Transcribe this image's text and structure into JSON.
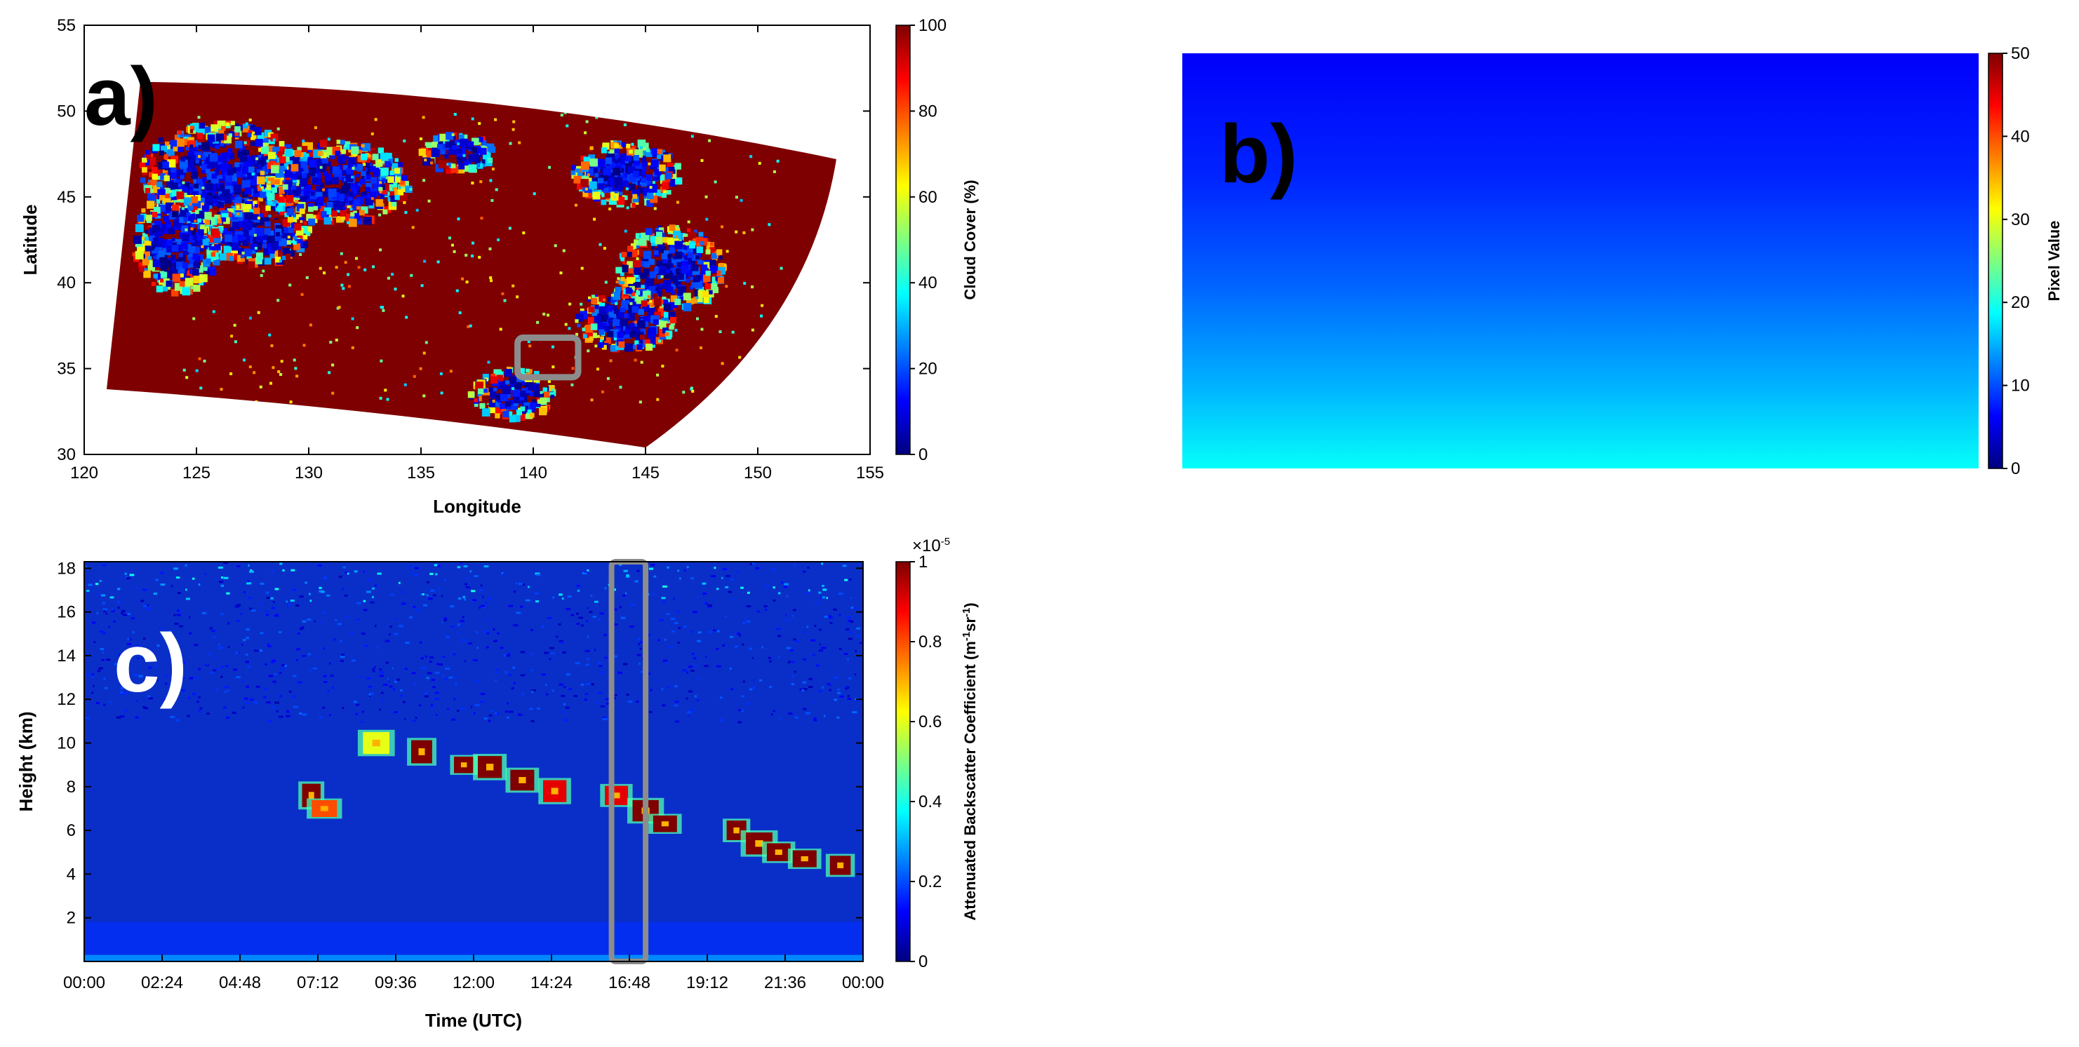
{
  "colors": {
    "jet": [
      "#00007f",
      "#0000ff",
      "#007fff",
      "#00ffff",
      "#7fff7f",
      "#ffff00",
      "#ff7f00",
      "#ff0000",
      "#7f0000"
    ],
    "highlight_box": "#8c8c8c",
    "map_background": "#7f0000",
    "panel_label_light": "#ffffff",
    "panel_label_dark": "#000000"
  },
  "chart_data": [
    {
      "panel": "a)",
      "type": "heatmap",
      "description_kind": "satellite cloud cover map",
      "xlabel": "Longitude",
      "ylabel": "Latitude",
      "xlim": [
        120,
        155
      ],
      "ylim": [
        30,
        55
      ],
      "xticks": [
        "120",
        "125",
        "130",
        "135",
        "140",
        "145",
        "150",
        "155"
      ],
      "yticks": [
        "30",
        "35",
        "40",
        "45",
        "50",
        "55"
      ],
      "colorbar": {
        "label": "Cloud Cover (%)",
        "range": [
          0,
          100
        ],
        "ticks": [
          "0",
          "20",
          "40",
          "60",
          "80",
          "100"
        ]
      },
      "swath_corners_lonlat": [
        [
          122.5,
          51.7
        ],
        [
          153.5,
          47.2
        ],
        [
          145.0,
          30.4
        ],
        [
          121.0,
          33.8
        ]
      ],
      "clear_regions_lonlat": [
        {
          "lon": 126.0,
          "lat": 46.5,
          "rx": 3.0,
          "ry": 2.5
        },
        {
          "lon": 131.0,
          "lat": 46.0,
          "rx": 2.8,
          "ry": 2.0
        },
        {
          "lon": 127.5,
          "lat": 43.0,
          "rx": 2.0,
          "ry": 1.5
        },
        {
          "lon": 124.0,
          "lat": 42.5,
          "rx": 1.6,
          "ry": 2.5
        },
        {
          "lon": 136.5,
          "lat": 47.8,
          "rx": 1.4,
          "ry": 0.9
        },
        {
          "lon": 144.0,
          "lat": 46.5,
          "rx": 2.0,
          "ry": 1.6
        },
        {
          "lon": 146.0,
          "lat": 41.0,
          "rx": 2.0,
          "ry": 2.0
        },
        {
          "lon": 144.0,
          "lat": 38.0,
          "rx": 1.8,
          "ry": 1.5
        },
        {
          "lon": 139.0,
          "lat": 33.7,
          "rx": 1.6,
          "ry": 1.2
        }
      ],
      "highlight_box_lonlat": {
        "lon_min": 139.3,
        "lon_max": 142.0,
        "lat_min": 34.5,
        "lat_max": 36.8
      }
    },
    {
      "panel": "b)",
      "type": "heatmap",
      "description_kind": "sky camera image",
      "colorbar": {
        "label": "Pixel Value",
        "range": [
          0,
          50
        ],
        "ticks": [
          "0",
          "10",
          "20",
          "30",
          "40",
          "50"
        ]
      },
      "vertical_gradient_values": [
        {
          "row": 0.0,
          "value": 6
        },
        {
          "row": 0.3,
          "value": 8
        },
        {
          "row": 0.55,
          "value": 11
        },
        {
          "row": 0.8,
          "value": 15
        },
        {
          "row": 1.0,
          "value": 19
        }
      ]
    },
    {
      "panel": "c)",
      "type": "heatmap",
      "description_kind": "lidar attenuated backscatter time-height",
      "xlabel": "Time (UTC)",
      "ylabel": "Height (km)",
      "xlim_hours": [
        0,
        24
      ],
      "ylim_km": [
        0,
        18.3
      ],
      "xticks": [
        "00:00",
        "02:24",
        "04:48",
        "07:12",
        "09:36",
        "12:00",
        "14:24",
        "16:48",
        "19:12",
        "21:36",
        "00:00"
      ],
      "yticks": [
        "2",
        "4",
        "6",
        "8",
        "10",
        "12",
        "14",
        "16",
        "18"
      ],
      "colorbar": {
        "label": "Attenuated Backscatter Coefficient (m",
        "label_sup1": "-1",
        "label_mid": "sr",
        "label_sup2": "-1",
        "label_end": ")",
        "multiplier_base": "×10",
        "multiplier_exp": "-5",
        "range": [
          0,
          1
        ],
        "ticks": [
          "0",
          "0.2",
          "0.4",
          "0.6",
          "0.8",
          "1"
        ]
      },
      "cloud_layer": [
        {
          "time_h": 7.0,
          "height_km": 7.6,
          "value": 1.0
        },
        {
          "time_h": 7.4,
          "height_km": 7.0,
          "value": 0.8
        },
        {
          "time_h": 9.0,
          "height_km": 10.0,
          "value": 0.6
        },
        {
          "time_h": 10.4,
          "height_km": 9.6,
          "value": 1.0
        },
        {
          "time_h": 11.7,
          "height_km": 9.0,
          "value": 1.0
        },
        {
          "time_h": 12.5,
          "height_km": 8.9,
          "value": 1.0
        },
        {
          "time_h": 13.5,
          "height_km": 8.3,
          "value": 1.0
        },
        {
          "time_h": 14.5,
          "height_km": 7.8,
          "value": 0.9
        },
        {
          "time_h": 16.4,
          "height_km": 7.6,
          "value": 0.9
        },
        {
          "time_h": 17.3,
          "height_km": 6.9,
          "value": 1.0
        },
        {
          "time_h": 17.9,
          "height_km": 6.3,
          "value": 1.0
        },
        {
          "time_h": 20.1,
          "height_km": 6.0,
          "value": 1.0
        },
        {
          "time_h": 20.8,
          "height_km": 5.4,
          "value": 1.0
        },
        {
          "time_h": 21.4,
          "height_km": 5.0,
          "value": 1.0
        },
        {
          "time_h": 22.2,
          "height_km": 4.7,
          "value": 1.0
        },
        {
          "time_h": 23.3,
          "height_km": 4.4,
          "value": 1.0
        }
      ],
      "highlight_box_hours": {
        "t_min": 16.25,
        "t_max": 17.3,
        "h_min": 0.0,
        "h_max": 18.3
      }
    }
  ]
}
